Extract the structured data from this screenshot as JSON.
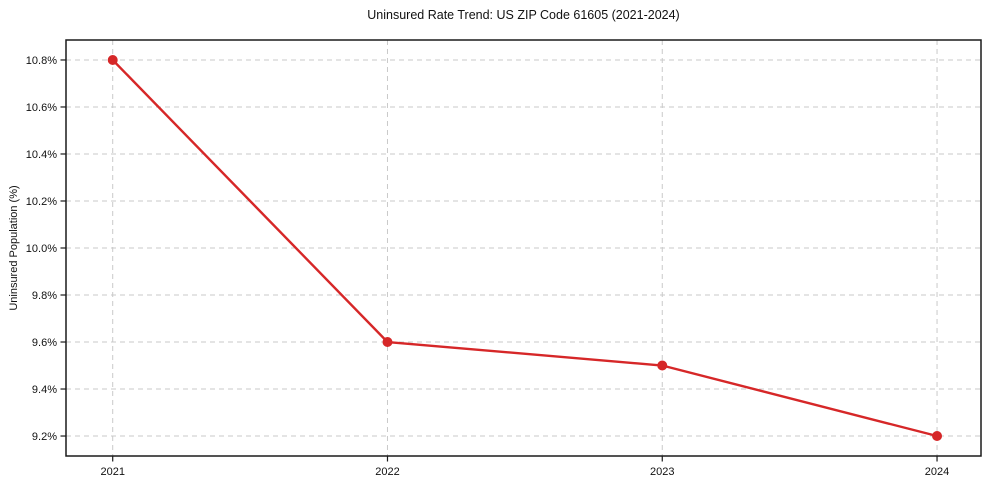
{
  "chart_data": {
    "type": "line",
    "title": "Uninsured Rate Trend: US ZIP Code 61605 (2021-2024)",
    "xlabel": "",
    "ylabel": "Uninsured Population (%)",
    "x": [
      2021,
      2022,
      2023,
      2024
    ],
    "x_tick_labels": [
      "2021",
      "2022",
      "2023",
      "2024"
    ],
    "values": [
      10.8,
      9.6,
      9.5,
      9.2
    ],
    "y_ticks": [
      9.2,
      9.4,
      9.6,
      9.8,
      10.0,
      10.2,
      10.4,
      10.6,
      10.8
    ],
    "y_tick_labels": [
      "9.2%",
      "9.4%",
      "9.6%",
      "9.8%",
      "10.0%",
      "10.2%",
      "10.4%",
      "10.6%",
      "10.8%"
    ],
    "xlim": [
      2020.83,
      2024.16
    ],
    "ylim": [
      9.115,
      10.885
    ],
    "grid": true,
    "grid_style": "dashed",
    "legend": "none",
    "marker": "circle",
    "colors": {
      "line": "#d62728",
      "marker": "#d62728",
      "grid": "#c9c9c9",
      "axis": "#1a1a1a",
      "text": "#111111",
      "background": "#ffffff"
    }
  }
}
